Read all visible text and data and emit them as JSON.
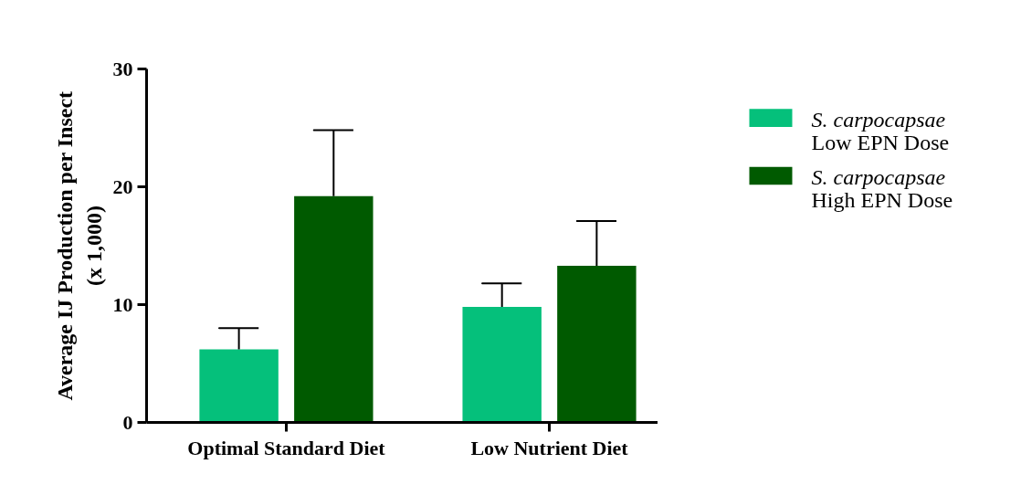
{
  "chart_data": {
    "type": "bar",
    "ylabel": "Average IJ Production per Insect\n(x 1,000)",
    "categories": [
      "Optimal Standard Diet",
      "Low Nutrient Diet"
    ],
    "series": [
      {
        "name": "S. carpocapsae\nLow EPN Dose",
        "color": "#05c07b",
        "values": [
          6.2,
          9.8
        ],
        "errors": [
          [
            6.2,
            8.0
          ],
          [
            9.8,
            11.8
          ]
        ]
      },
      {
        "name": "S. carpocapsae\nHigh EPN Dose",
        "color": "#005a00",
        "values": [
          19.2,
          13.3
        ],
        "errors": [
          [
            19.2,
            24.8
          ],
          [
            13.3,
            17.1
          ]
        ]
      }
    ],
    "ylim": [
      0,
      30
    ],
    "yticks": [
      0,
      10,
      20,
      30
    ],
    "grid": false,
    "legend": "right"
  }
}
